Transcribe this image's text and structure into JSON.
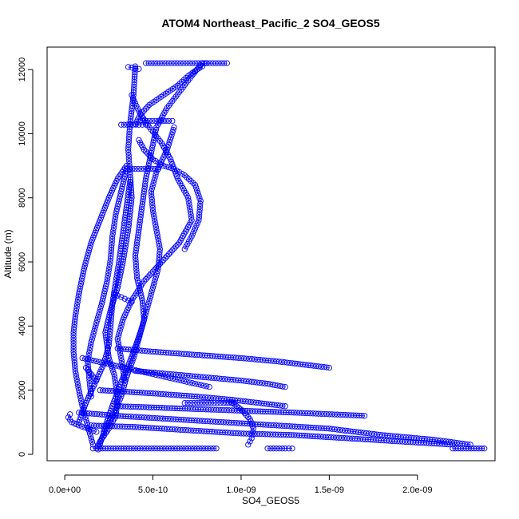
{
  "chart_data": {
    "type": "scatter",
    "title": "ATOM4 Northeast_Pacific_2 SO4_GEOS5",
    "xlabel": "SO4_GEOS5",
    "ylabel": "Altitude (m)",
    "xlim": [
      -1e-10,
      2.44e-09
    ],
    "ylim": [
      -200,
      12700
    ],
    "x_ticks": [
      0,
      5e-10,
      1e-09,
      1.5e-09,
      2e-09
    ],
    "x_tick_labels": [
      "0.0e+00",
      "5.0e-10",
      "1.0e-09",
      "1.5e-09",
      "2.0e-09"
    ],
    "y_ticks": [
      0,
      2000,
      4000,
      6000,
      8000,
      10000,
      12000
    ],
    "y_tick_labels": [
      "0",
      "2000",
      "4000",
      "6000",
      "8000",
      "10000",
      "12000"
    ],
    "marker": "open-circle",
    "connect_points": true,
    "color": "#0000ff",
    "grid": false,
    "series": [
      {
        "x": [
          1.8e-10,
          2e-10,
          2.5e-10,
          2.9e-10,
          3e-10,
          2.8e-10,
          2.5e-10,
          2.3e-10,
          2.6e-10,
          3e-10,
          3.3e-10,
          3.6e-10,
          3.8e-10,
          3.7e-10,
          3.6e-10,
          3.7e-10,
          3.9e-10,
          4e-10
        ],
        "y": [
          180,
          400,
          800,
          1200,
          1800,
          2500,
          3000,
          3800,
          4500,
          5200,
          6000,
          7000,
          8000,
          8800,
          9500,
          10300,
          11200,
          12100
        ]
      },
      {
        "x": [
          1.6e-10,
          1.3e-10,
          1e-10,
          8e-11,
          6e-11,
          5e-11,
          5e-11,
          6e-11,
          8e-11,
          1.1e-10,
          1.5e-10,
          2e-10,
          2.5e-10,
          3e-10,
          3.5e-10
        ],
        "y": [
          300,
          900,
          1500,
          2000,
          2600,
          3200,
          3800,
          4300,
          5000,
          5800,
          6600,
          7300,
          8000,
          8600,
          9000
        ]
      },
      {
        "x": [
          1.9e-10,
          2.1e-10,
          2.4e-10,
          2.8e-10,
          3.2e-10,
          3.5e-10,
          3.9e-10,
          4.2e-10,
          4.5e-10,
          4.4e-10,
          4.1e-10,
          4e-10,
          4.2e-10,
          4.4e-10,
          4.6e-10,
          4.9e-10,
          5.2e-10,
          5.8e-10,
          6.5e-10,
          7.2e-10,
          7.8e-10
        ],
        "y": [
          150,
          500,
          900,
          1300,
          1800,
          2400,
          3000,
          3600,
          4200,
          4800,
          5500,
          6200,
          7000,
          7800,
          8600,
          9400,
          10200,
          10800,
          11300,
          11800,
          12200
        ]
      },
      {
        "x": [
          3.4e-10,
          3.2e-10,
          3e-10,
          3.3e-10,
          3.8e-10,
          4.5e-10,
          5.5e-10,
          6.5e-10,
          7.2e-10,
          7e-10,
          6.4e-10,
          6e-10,
          5.5e-10,
          4.8e-10,
          4.2e-10,
          3.8e-10
        ],
        "y": [
          2300,
          3000,
          3600,
          4200,
          4800,
          5400,
          6000,
          6600,
          7300,
          8000,
          8600,
          9200,
          9700,
          10200,
          10700,
          11200
        ]
      },
      {
        "x": [
          6.8e-10,
          7.2e-10,
          7.6e-10,
          7.7e-10,
          7.4e-10,
          6.8e-10,
          6.2e-10,
          5.6e-10,
          5e-10,
          4.5e-10,
          4.2e-10
        ],
        "y": [
          6400,
          6800,
          7300,
          7900,
          8400,
          8700,
          8900,
          9000,
          9200,
          9500,
          9800
        ]
      },
      {
        "x": [
          2.2e-10,
          2.5e-10,
          2.9e-10,
          3.3e-10,
          3.7e-10,
          4.1e-10,
          4.4e-10,
          4.7e-10,
          5e-10,
          5.3e-10,
          5.4e-10,
          5.2e-10,
          5e-10,
          4.9e-10,
          5.2e-10,
          5.8e-10,
          6.2e-10
        ],
        "y": [
          700,
          1200,
          1800,
          2400,
          2900,
          3500,
          4000,
          4600,
          5200,
          5800,
          6400,
          7000,
          7600,
          8200,
          8800,
          9500,
          10200
        ]
      },
      {
        "x": [
          8e-11,
          1.2e-10,
          1.7e-10,
          2.2e-10,
          2.5e-10,
          2.6e-10,
          2.7e-10,
          2.9e-10,
          3.1e-10,
          3.3e-10,
          3.5e-10,
          3.7e-10
        ],
        "y": [
          1000,
          1600,
          2200,
          2800,
          3400,
          4000,
          4700,
          5400,
          6100,
          6900,
          7700,
          8500
        ]
      },
      {
        "x": [
          4e-10,
          4.3e-10,
          4.8e-10,
          5.6e-10,
          6.4e-10,
          7e-10,
          7.5e-10,
          7.8e-10,
          8e-10
        ],
        "y": [
          10300,
          10600,
          10900,
          11200,
          11500,
          11800,
          12000,
          12100,
          12200
        ]
      },
      {
        "x": [
          4.6e-10,
          5.4e-10,
          6.4e-10,
          7.4e-10,
          8.4e-10,
          9.2e-10
        ],
        "y": [
          12200,
          12200,
          12200,
          12200,
          12200,
          12200
        ]
      },
      {
        "x": [
          3.6e-10,
          3.8e-10,
          4e-10,
          4.2e-10
        ],
        "y": [
          12080,
          12060,
          12040,
          12020
        ]
      },
      {
        "x": [
          4.3e-10,
          4.8e-10,
          5.3e-10,
          5.9e-10,
          6.1e-10
        ],
        "y": [
          10400,
          10400,
          10400,
          10400,
          10400
        ]
      },
      {
        "x": [
          3.2e-10,
          3.7e-10,
          4.2e-10,
          4.6e-10
        ],
        "y": [
          10280,
          10280,
          10280,
          10280
        ]
      },
      {
        "x": [
          3.5e-10,
          4e-10,
          4.5e-10,
          5e-10,
          5.3e-10
        ],
        "y": [
          8900,
          8900,
          8900,
          8900,
          8900
        ]
      },
      {
        "x": [
          6.8e-10,
          7.5e-10,
          8.3e-10,
          9e-10,
          9.6e-10
        ],
        "y": [
          1600,
          1600,
          1600,
          1600,
          1600
        ]
      },
      {
        "x": [
          1.6e-10,
          2e-10,
          2.6e-10,
          3.2e-10,
          3.8e-10,
          4.6e-10,
          5.4e-10,
          6.2e-10,
          7e-10,
          7.8e-10,
          8.6e-10
        ],
        "y": [
          180,
          180,
          180,
          180,
          180,
          180,
          180,
          180,
          180,
          180,
          180
        ]
      },
      {
        "x": [
          1.15e-09,
          1.2e-09,
          1.25e-09,
          1.29e-09
        ],
        "y": [
          180,
          180,
          180,
          180
        ]
      },
      {
        "x": [
          2.2e-09,
          2.26e-09,
          2.32e-09,
          2.38e-09
        ],
        "y": [
          180,
          180,
          180,
          180
        ]
      },
      {
        "x": [
          8e-11,
          3e-10,
          6e-10,
          9e-10,
          1.2e-09,
          1.5e-09,
          1.8e-09,
          2.1e-09,
          2.3e-09
        ],
        "y": [
          1300,
          1200,
          1100,
          1000,
          900,
          800,
          600,
          450,
          300
        ]
      },
      {
        "x": [
          1.5e-10,
          4e-10,
          7e-10,
          1e-09,
          1.3e-09,
          1.6e-09,
          1.9e-09,
          2.2e-09
        ],
        "y": [
          900,
          850,
          750,
          650,
          600,
          500,
          400,
          300
        ]
      },
      {
        "x": [
          3e-10,
          5e-10,
          7.5e-10,
          1e-09,
          1.2e-09,
          1.35e-09,
          1.5e-09
        ],
        "y": [
          3300,
          3200,
          3100,
          3000,
          2900,
          2800,
          2700
        ]
      },
      {
        "x": [
          4e-10,
          6e-10,
          8e-10,
          1e-09,
          1.15e-09,
          1.25e-09
        ],
        "y": [
          2600,
          2500,
          2400,
          2300,
          2200,
          2100
        ]
      },
      {
        "x": [
          3e-10,
          5.5e-10,
          8e-10,
          1.05e-09,
          1.3e-09,
          1.5e-09,
          1.7e-09
        ],
        "y": [
          1500,
          1450,
          1400,
          1350,
          1300,
          1250,
          1200
        ]
      },
      {
        "x": [
          2e-10,
          5e-10,
          7.5e-10,
          9.5e-10,
          1.1e-09,
          1.25e-09
        ],
        "y": [
          2000,
          1900,
          1800,
          1700,
          1600,
          1500
        ]
      },
      {
        "x": [
          9.5e-10,
          1e-09,
          1.05e-09,
          1.07e-09,
          1.06e-09,
          1.04e-09
        ],
        "y": [
          1600,
          1400,
          1100,
          800,
          500,
          300
        ]
      },
      {
        "x": [
          1e-10,
          1.8e-10,
          2.6e-10,
          3.4e-10,
          4.2e-10,
          5e-10,
          5.8e-10,
          6.6e-10,
          7.4e-10,
          8.2e-10
        ],
        "y": [
          3000,
          2900,
          2800,
          2700,
          2600,
          2500,
          2400,
          2300,
          2200,
          2100
        ]
      },
      {
        "x": [
          1.2e-10,
          1.5e-10,
          1.8e-10
        ],
        "y": [
          2700,
          2500,
          2300
        ]
      },
      {
        "x": [
          2.8e-10,
          3e-10,
          3.2e-10,
          3.4e-10,
          3.6e-10,
          3.8e-10
        ],
        "y": [
          5000,
          4950,
          4900,
          4850,
          4800,
          4750
        ]
      },
      {
        "x": [
          1.5e-10,
          1.4e-10,
          1.3e-10,
          1.5e-10,
          1.8e-10,
          2.1e-10,
          2.4e-10,
          2.6e-10,
          2.7e-10,
          2.9e-10,
          3.2e-10,
          3.5e-10
        ],
        "y": [
          1800,
          2300,
          2900,
          3500,
          4100,
          4700,
          5400,
          6100,
          6800,
          7500,
          8200,
          8900
        ]
      },
      {
        "x": [
          3e-11,
          2e-11,
          4e-11,
          8e-11,
          1.3e-10,
          1.8e-10
        ],
        "y": [
          1250,
          1150,
          1000,
          900,
          800,
          700
        ]
      }
    ]
  }
}
